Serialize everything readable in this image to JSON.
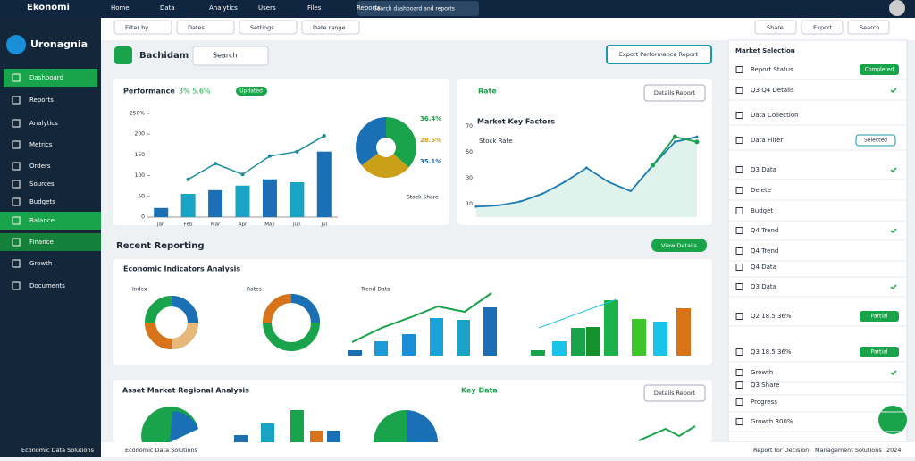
{
  "topbar": {
    "brand": "Ekonomi",
    "nav": [
      "Home",
      "Data",
      "Analytics",
      "Users",
      "Files",
      "Reports"
    ],
    "search": "Search dashboard and reports"
  },
  "toolbar": {
    "filters": [
      "Filter by",
      "Dates",
      "Settings",
      "Date range"
    ],
    "actions": [
      "Share",
      "Export",
      "Search"
    ]
  },
  "sidebar": {
    "title": "Uronagnia",
    "items": [
      "Dashboard",
      "Reports",
      "Analytics",
      "Metrics",
      "Orders",
      "Sources",
      "Budgets",
      "Balance",
      "Finance",
      "Growth",
      "Documents"
    ],
    "footer": "Economic Data Solutions"
  },
  "header": {
    "title": "Bachidam",
    "search": "Search",
    "action": "Export Performance Report"
  },
  "main_chart": {
    "type": "bar",
    "title": "Performance",
    "badge_text": "3% 5.6%",
    "badge": "Updated",
    "categories": [
      "Jan",
      "Feb",
      "Mar",
      "Apr",
      "May",
      "Jun",
      "Jul"
    ],
    "values": [
      22,
      56,
      65,
      76,
      91,
      84,
      158
    ],
    "line": [
      null,
      91,
      129,
      103,
      147,
      158,
      196
    ],
    "ylim": [
      0,
      250
    ],
    "yticks": [
      {
        "value": 250,
        "label": "250%"
      },
      200,
      150,
      100,
      50,
      0
    ],
    "colors": [
      "#1a6fb5",
      "#1aa3c4"
    ],
    "line_color": "#1a8a9a"
  },
  "pie_chart": {
    "type": "pie",
    "values": [
      36.4,
      28.5,
      35.1
    ],
    "value_labels": [
      "36.4%",
      "28.5%",
      "35.1%"
    ],
    "colors": [
      "#19a34a",
      "#c9a018",
      "#1a6fb5"
    ],
    "legend": "Stock Share"
  },
  "trend_chart": {
    "type": "line",
    "title": "Market Key Factors",
    "subtitle": "Rate",
    "legend": "Stock Rate",
    "button": "Details Report",
    "ylim": [
      0,
      80
    ],
    "yticks": [
      70,
      50,
      30,
      10
    ],
    "series": [
      {
        "name": "Market",
        "color": "#1a7bb5",
        "values": [
          8,
          9,
          12,
          18,
          27,
          38,
          27,
          20,
          40,
          58,
          62
        ]
      },
      {
        "name": "Trend",
        "color": "#19a34a",
        "values": [
          null,
          null,
          null,
          null,
          null,
          null,
          null,
          null,
          40,
          62,
          58
        ]
      }
    ]
  },
  "recent": {
    "title": "Recent Reporting",
    "button": "View Details",
    "card_title": "Economic Indicators Analysis",
    "labels": [
      "Index",
      "Rates",
      "Trend Data"
    ]
  },
  "analysis": {
    "title": "Asset Market Regional Analysis",
    "legend": "Key Data",
    "button": "Details Report"
  },
  "panel": {
    "title": "Market Selection",
    "rows": [
      {
        "label": "Report Status",
        "tag": "Completed"
      },
      {
        "label": "Q3 Q4 Details"
      },
      {
        "label": "Data Collection"
      },
      {
        "label": "Data Filter",
        "tag": "Selected"
      },
      {
        "label": "Q3 Data"
      },
      {
        "label": "Delete"
      },
      {
        "label": "Budget"
      },
      {
        "label": "Q4 Trend"
      },
      {
        "label": "Q4 Trend"
      },
      {
        "label": "Q4 Data"
      },
      {
        "label": "Q3 Data"
      },
      {
        "label": "Q2 18.5 36%",
        "tag": "Partial"
      },
      {
        "label": "Q3 18.5 36%",
        "tag": "Partial"
      },
      {
        "label": "Growth"
      },
      {
        "label": "Q3 Share"
      },
      {
        "label": "Progress"
      },
      {
        "label": "Growth 300%"
      }
    ]
  },
  "footer": {
    "left": "Economic Data Solutions",
    "right": [
      "Report for Decision",
      "Management Solutions",
      "2024"
    ]
  }
}
